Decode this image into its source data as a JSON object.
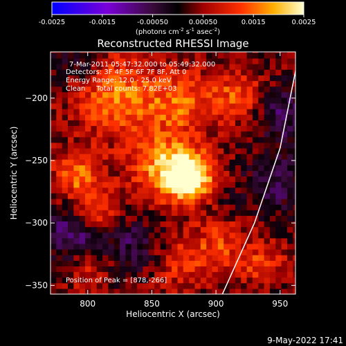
{
  "chart_data": {
    "type": "heatmap",
    "title": "Reconstructed RHESSI Image",
    "xlabel": "Heliocentric X (arcsec)",
    "ylabel": "Heliocentric Y (arcsec)",
    "xlim": [
      771,
      962
    ],
    "ylim": [
      -357,
      -163
    ],
    "x_ticks": [
      800,
      850,
      900,
      950
    ],
    "y_ticks": [
      -350,
      -300,
      -250,
      -200
    ],
    "colorbar": {
      "range": [
        -0.0025,
        0.0025
      ],
      "ticks": [
        "-0.0025",
        "-0.0015",
        "-0.00050",
        "0.00050",
        "0.0015",
        "0.0025"
      ],
      "units": "(photons cm",
      "units_exp1": "-2",
      "units_mid": " s",
      "units_exp2": "-1",
      "units_mid2": " asec",
      "units_exp3": "-2",
      "units_close": ")"
    },
    "annotations": [
      "7-Mar-2011 05:47:32.000 to 05:49:32.000",
      "Detectors: 3F 4F 5F 6F 7F 8F, Att 0",
      "Energy Range: 12.0 - 25.0 keV",
      "Clean     Total counts: 7.82E+03"
    ],
    "peak_label": "Position of Peak = [878,-266]",
    "peak": [
      878,
      -266
    ],
    "limb": [
      [
        905,
        -357
      ],
      [
        930,
        -300
      ],
      [
        950,
        -240
      ],
      [
        965,
        -163
      ]
    ],
    "grid": false,
    "legend": "none"
  },
  "footer": {
    "timestamp": "9-May-2022 17:41"
  },
  "colors": {
    "background": "#000000",
    "foreground": "#ffffff",
    "limb": "#ffffff"
  }
}
